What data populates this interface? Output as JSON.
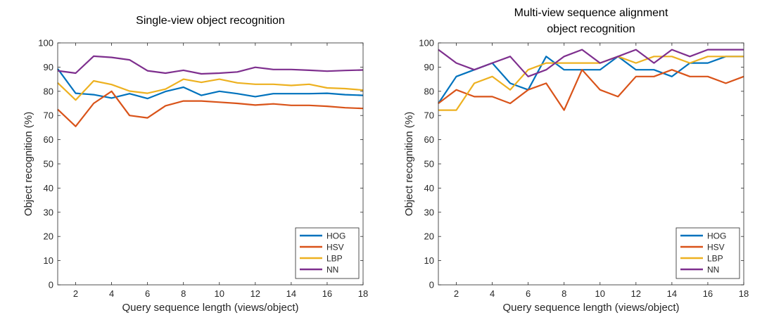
{
  "chart_data": [
    {
      "type": "line",
      "title": [
        "Single-view object recognition"
      ],
      "xlabel": "Query sequence length (views/object)",
      "ylabel": "Object recognition (%)",
      "xlim": [
        1,
        18
      ],
      "ylim": [
        0,
        100
      ],
      "xticks": [
        2,
        4,
        6,
        8,
        10,
        12,
        14,
        16,
        18
      ],
      "yticks": [
        0,
        10,
        20,
        30,
        40,
        50,
        60,
        70,
        80,
        90,
        100
      ],
      "grid": false,
      "legend_position": "bottom-right",
      "x": [
        1,
        2,
        3,
        4,
        5,
        6,
        7,
        8,
        9,
        10,
        11,
        12,
        13,
        14,
        15,
        16,
        17,
        18
      ],
      "series": [
        {
          "name": "HOG",
          "color": "#0072BD",
          "values": [
            89.3,
            79.2,
            78.6,
            77.2,
            79.0,
            77.0,
            79.9,
            81.7,
            78.3,
            80.0,
            79.0,
            77.8,
            79.0,
            79.0,
            79.0,
            79.2,
            78.6,
            78.3
          ]
        },
        {
          "name": "HSV",
          "color": "#D95319",
          "values": [
            72.5,
            65.5,
            75.0,
            80.0,
            70.0,
            69.0,
            74.0,
            76.0,
            76.0,
            75.5,
            75.0,
            74.3,
            74.8,
            74.2,
            74.2,
            73.8,
            73.2,
            72.9
          ]
        },
        {
          "name": "LBP",
          "color": "#EDB120",
          "values": [
            83.5,
            76.4,
            84.3,
            82.8,
            80.1,
            79.2,
            80.9,
            85.0,
            83.7,
            85.0,
            83.5,
            82.9,
            82.9,
            82.4,
            82.9,
            81.4,
            81.1,
            80.5
          ]
        },
        {
          "name": "NN",
          "color": "#7E2F8E",
          "values": [
            88.5,
            87.5,
            94.5,
            94.0,
            93.0,
            88.5,
            87.5,
            88.7,
            87.2,
            87.5,
            88.0,
            89.9,
            89.0,
            89.0,
            88.7,
            88.3,
            88.6,
            88.8
          ]
        }
      ]
    },
    {
      "type": "line",
      "title": [
        "Multi-view sequence alignment",
        "object recognition"
      ],
      "xlabel": "Query sequence length (views/object)",
      "ylabel": "Object recognition (%)",
      "xlim": [
        1,
        18
      ],
      "ylim": [
        0,
        100
      ],
      "xticks": [
        2,
        4,
        6,
        8,
        10,
        12,
        14,
        16,
        18
      ],
      "yticks": [
        0,
        10,
        20,
        30,
        40,
        50,
        60,
        70,
        80,
        90,
        100
      ],
      "grid": false,
      "legend_position": "bottom-right",
      "x": [
        1,
        2,
        3,
        4,
        5,
        6,
        7,
        8,
        9,
        10,
        11,
        12,
        13,
        14,
        15,
        16,
        17,
        18
      ],
      "series": [
        {
          "name": "HOG",
          "color": "#0072BD",
          "values": [
            75.0,
            86.1,
            88.9,
            91.7,
            83.3,
            80.6,
            94.4,
            88.9,
            88.9,
            88.9,
            94.4,
            88.9,
            88.9,
            86.1,
            91.7,
            91.7,
            94.4,
            94.4
          ]
        },
        {
          "name": "HSV",
          "color": "#D95319",
          "values": [
            75.0,
            80.6,
            77.8,
            77.8,
            75.0,
            80.6,
            83.3,
            72.2,
            88.9,
            80.6,
            77.8,
            86.1,
            86.1,
            88.9,
            86.1,
            86.1,
            83.3,
            86.1
          ]
        },
        {
          "name": "LBP",
          "color": "#EDB120",
          "values": [
            72.2,
            72.2,
            83.3,
            86.1,
            80.6,
            88.9,
            91.7,
            91.7,
            91.7,
            91.7,
            94.4,
            91.7,
            94.4,
            94.4,
            91.7,
            94.4,
            94.4,
            94.4
          ]
        },
        {
          "name": "NN",
          "color": "#7E2F8E",
          "values": [
            97.2,
            91.7,
            88.9,
            91.7,
            94.4,
            86.1,
            88.9,
            94.4,
            97.2,
            91.7,
            94.4,
            97.2,
            91.7,
            97.2,
            94.4,
            97.2,
            97.2,
            97.2
          ]
        }
      ]
    }
  ]
}
